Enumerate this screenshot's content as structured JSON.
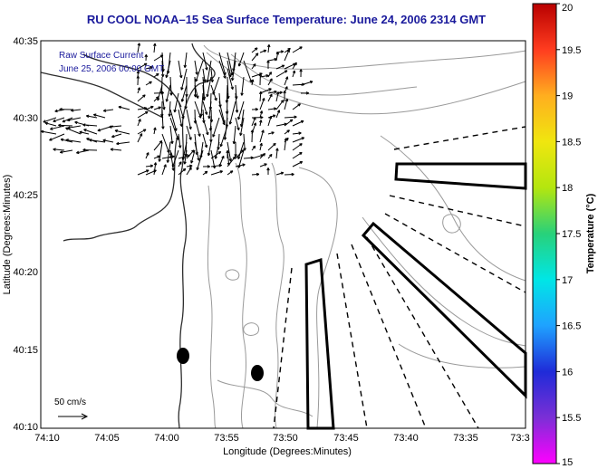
{
  "title": "RU COOL   NOAA–15  Sea Surface Temperature:  June 24, 2006 2314 GMT",
  "legend": {
    "line1": "Raw Surface Current",
    "line2": "June 25, 2006 00:00 GMT"
  },
  "scale_label": "50 cm/s",
  "axes": {
    "xlabel": "Longitude (Degrees:Minutes)",
    "ylabel": "Latitude (Degrees:Minutes)",
    "xticks": [
      "74:10",
      "74:05",
      "74:00",
      "73:55",
      "73:50",
      "73:45",
      "73:40",
      "73:35",
      "73:3"
    ],
    "yticks": [
      "40:35",
      "40:30",
      "40:25",
      "40:20",
      "40:15",
      "40:10"
    ]
  },
  "colorbar": {
    "label": "Temperature (°C)",
    "ticks": [
      "20",
      "19.5",
      "19",
      "18.5",
      "18",
      "17.5",
      "17",
      "16.5",
      "16",
      "15.5",
      "15"
    ],
    "colors": [
      "#ff00ff",
      "#7b2fd6",
      "#1f2bd8",
      "#1fa2ff",
      "#00e6e6",
      "#28d17a",
      "#b4e60f",
      "#f0e60f",
      "#ffae1f",
      "#ff3c1f",
      "#b80000"
    ]
  },
  "map_colors": {
    "coast": "#2d2d2d",
    "contour": "#9a9a9a",
    "vector": "#000000",
    "box": "#000000"
  }
}
